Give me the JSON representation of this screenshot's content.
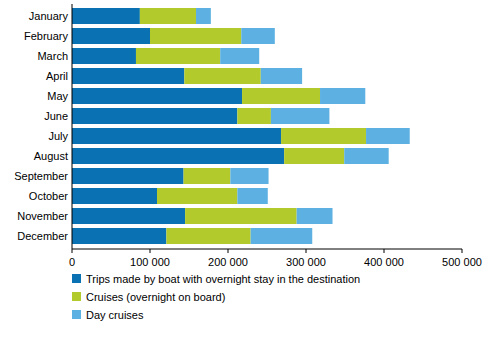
{
  "chart_data": {
    "type": "bar",
    "orientation": "horizontal",
    "stacked": true,
    "grid": false,
    "categories": [
      "January",
      "February",
      "March",
      "April",
      "May",
      "June",
      "July",
      "August",
      "September",
      "October",
      "November",
      "December"
    ],
    "series": [
      {
        "name": "Trips made by boat with overnight stay in the destination",
        "color": "#0a72b2",
        "values": [
          87000,
          100000,
          82000,
          144000,
          218000,
          212000,
          268000,
          272000,
          143000,
          109000,
          145000,
          121000
        ]
      },
      {
        "name": "Cruises (overnight on board)",
        "color": "#b3ca2d",
        "values": [
          72000,
          117000,
          108000,
          98000,
          100000,
          43000,
          109000,
          77000,
          60000,
          103000,
          143000,
          108000
        ]
      },
      {
        "name": "Day cruises",
        "color": "#5cb0e2",
        "values": [
          19000,
          43000,
          50000,
          53000,
          58000,
          75000,
          56000,
          57000,
          49000,
          39000,
          46000,
          79000
        ]
      }
    ],
    "xlim": [
      0,
      500000
    ],
    "xticks": [
      0,
      {
        "value": 100000,
        "label": "100 000"
      },
      {
        "value": 200000,
        "label": "200 000"
      },
      {
        "value": 300000,
        "label": "300 000"
      },
      {
        "value": 400000,
        "label": "400 000"
      },
      {
        "value": 500000,
        "label": "500 000"
      }
    ],
    "legend": "bottom"
  }
}
